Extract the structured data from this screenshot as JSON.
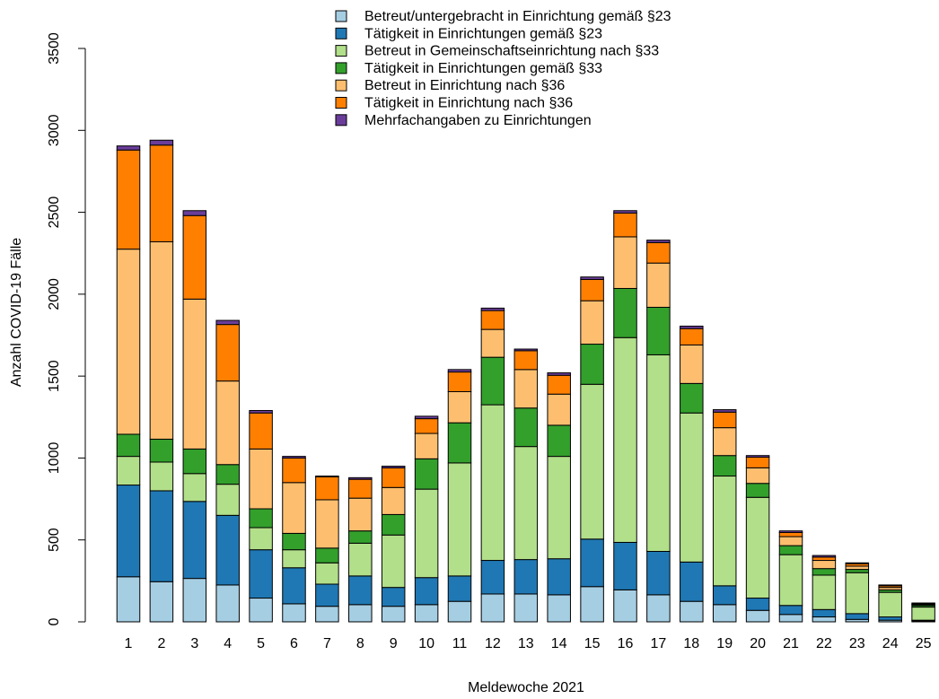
{
  "chart_data": {
    "type": "bar",
    "stacked": true,
    "title": "",
    "xlabel": "Meldewoche 2021",
    "ylabel": "Anzahl COVID-19 Fälle",
    "ylim": [
      0,
      3500
    ],
    "yticks": [
      0,
      500,
      1000,
      1500,
      2000,
      2500,
      3000,
      3500
    ],
    "grid": false,
    "legend_position": "top-center",
    "categories": [
      "1",
      "2",
      "3",
      "4",
      "5",
      "6",
      "7",
      "8",
      "9",
      "10",
      "11",
      "12",
      "13",
      "14",
      "15",
      "16",
      "17",
      "18",
      "19",
      "20",
      "21",
      "22",
      "23",
      "24",
      "25"
    ],
    "series": [
      {
        "name": "Betreut/untergebracht in Einrichtung gemäß §23",
        "color": "#a6cee3",
        "values": [
          275,
          245,
          265,
          225,
          145,
          110,
          95,
          105,
          95,
          105,
          125,
          170,
          170,
          165,
          215,
          195,
          165,
          125,
          105,
          70,
          45,
          30,
          15,
          10,
          5
        ]
      },
      {
        "name": "Tätigkeit in Einrichtungen gemäß §23",
        "color": "#1f78b4",
        "values": [
          560,
          555,
          470,
          425,
          295,
          220,
          135,
          175,
          115,
          165,
          155,
          205,
          210,
          220,
          290,
          290,
          265,
          240,
          115,
          75,
          55,
          45,
          35,
          20,
          5
        ]
      },
      {
        "name": "Betreut in Gemeinschaftseinrichtung nach §33",
        "color": "#b2df8a",
        "values": [
          175,
          175,
          170,
          190,
          135,
          110,
          130,
          200,
          320,
          540,
          690,
          950,
          690,
          625,
          945,
          1250,
          1200,
          910,
          670,
          615,
          310,
          210,
          250,
          150,
          80
        ]
      },
      {
        "name": "Tätigkeit in Einrichtungen gemäß §33",
        "color": "#33a02c",
        "values": [
          135,
          140,
          150,
          120,
          115,
          100,
          90,
          75,
          125,
          185,
          245,
          290,
          235,
          190,
          245,
          300,
          290,
          180,
          125,
          85,
          55,
          40,
          20,
          15,
          10
        ]
      },
      {
        "name": "Betreut in Einrichtung nach §36",
        "color": "#fdbf6f",
        "values": [
          1130,
          1205,
          915,
          510,
          365,
          310,
          295,
          200,
          165,
          155,
          190,
          170,
          235,
          190,
          265,
          315,
          270,
          235,
          170,
          95,
          55,
          50,
          20,
          15,
          5
        ]
      },
      {
        "name": "Tätigkeit in Einrichtung nach §36",
        "color": "#ff7f00",
        "values": [
          605,
          590,
          510,
          345,
          220,
          150,
          140,
          115,
          120,
          90,
          120,
          115,
          115,
          115,
          130,
          145,
          125,
          100,
          95,
          65,
          25,
          20,
          15,
          10,
          5
        ]
      },
      {
        "name": "Mehrfachangaben zu Einrichtungen",
        "color": "#6a3d9a",
        "values": [
          25,
          30,
          30,
          25,
          15,
          10,
          5,
          10,
          10,
          15,
          15,
          15,
          10,
          15,
          15,
          15,
          15,
          15,
          15,
          10,
          10,
          10,
          5,
          5,
          5
        ]
      }
    ]
  }
}
